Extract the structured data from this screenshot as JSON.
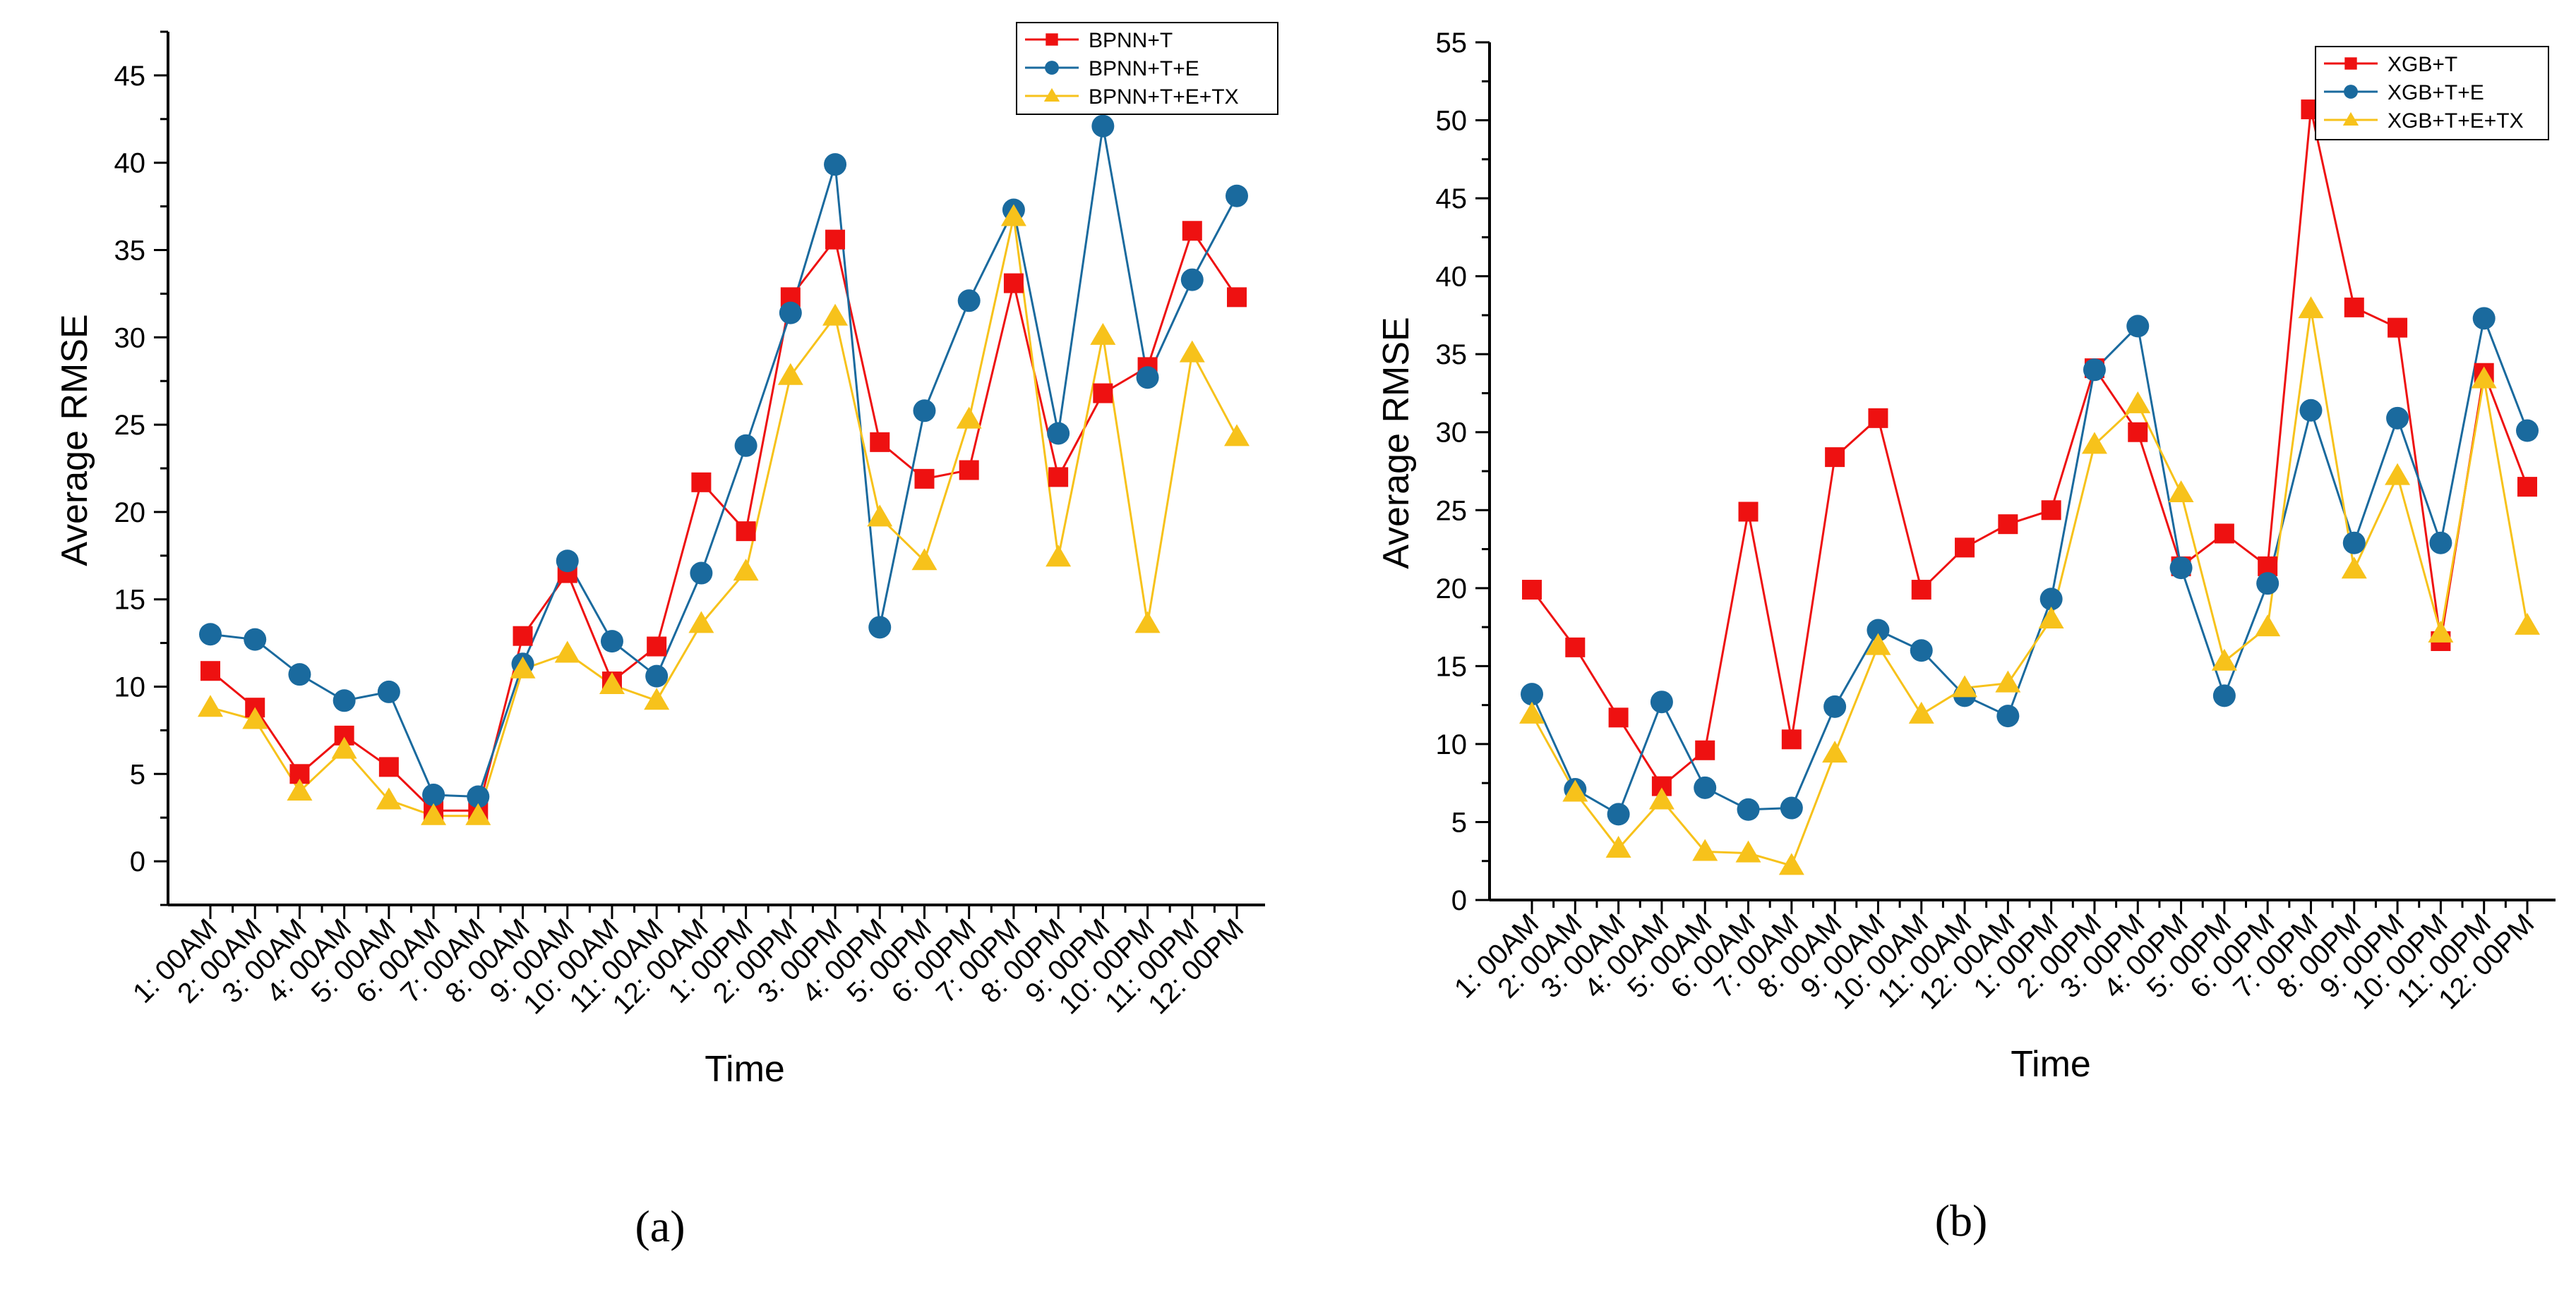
{
  "colors": {
    "red": "#ee1111",
    "blue": "#1a6a9e",
    "yellow": "#f7c21b"
  },
  "chart_data": [
    {
      "type": "line",
      "panel_label": "(a)",
      "xlabel": "Time",
      "ylabel": "Average RMSE",
      "ylim": [
        -2.5,
        47.5
      ],
      "yticks": [
        0,
        5,
        10,
        15,
        20,
        25,
        30,
        35,
        40,
        45
      ],
      "categories": [
        "1: 00AM",
        "2: 00AM",
        "3: 00AM",
        "4: 00AM",
        "5: 00AM",
        "6: 00AM",
        "7: 00AM",
        "8: 00AM",
        "9: 00AM",
        "10: 00AM",
        "11: 00AM",
        "12: 00AM",
        "1: 00PM",
        "2: 00PM",
        "3: 00PM",
        "4: 00PM",
        "5: 00PM",
        "6: 00PM",
        "7: 00PM",
        "8: 00PM",
        "9: 00PM",
        "10: 00PM",
        "11: 00PM",
        "12: 00PM"
      ],
      "series": [
        {
          "name": "BPNN+T",
          "color": "#ee1111",
          "marker": "square",
          "values": [
            10.9,
            8.8,
            5.0,
            7.2,
            5.4,
            2.9,
            2.9,
            12.9,
            16.5,
            10.3,
            12.3,
            21.7,
            18.9,
            32.3,
            35.6,
            24.0,
            21.9,
            22.4,
            33.1,
            22.0,
            26.8,
            28.3,
            36.1,
            32.3
          ]
        },
        {
          "name": "BPNN+T+E",
          "color": "#1a6a9e",
          "marker": "circle",
          "values": [
            13.0,
            12.7,
            10.7,
            9.2,
            9.7,
            3.8,
            3.7,
            11.3,
            17.2,
            12.6,
            10.6,
            16.5,
            23.8,
            31.4,
            39.9,
            13.4,
            25.8,
            32.1,
            37.3,
            24.5,
            42.1,
            27.7,
            33.3,
            38.1
          ]
        },
        {
          "name": "BPNN+T+E+TX",
          "color": "#f7c21b",
          "marker": "triangle",
          "values": [
            8.8,
            8.1,
            4.0,
            6.4,
            3.5,
            2.6,
            2.6,
            11.0,
            11.9,
            10.1,
            9.2,
            13.6,
            16.6,
            27.8,
            31.2,
            19.7,
            17.2,
            25.3,
            36.9,
            17.4,
            30.1,
            13.6,
            29.1,
            24.3
          ]
        }
      ]
    },
    {
      "type": "line",
      "panel_label": "(b)",
      "xlabel": "Time",
      "ylabel": "Average RMSE",
      "ylim": [
        0,
        55
      ],
      "yticks": [
        0,
        5,
        10,
        15,
        20,
        25,
        30,
        35,
        40,
        45,
        50,
        55
      ],
      "categories": [
        "1: 00AM",
        "2: 00AM",
        "3: 00AM",
        "4: 00AM",
        "5: 00AM",
        "6: 00AM",
        "7: 00AM",
        "8: 00AM",
        "9: 00AM",
        "10: 00AM",
        "11: 00AM",
        "12: 00AM",
        "1: 00PM",
        "2: 00PM",
        "3: 00PM",
        "4: 00PM",
        "5: 00PM",
        "6: 00PM",
        "7: 00PM",
        "8: 00PM",
        "9: 00PM",
        "10: 00PM",
        "11: 00PM",
        "12: 00PM"
      ],
      "series": [
        {
          "name": "XGB+T",
          "color": "#ee1111",
          "marker": "square",
          "values": [
            19.9,
            16.2,
            11.7,
            7.3,
            9.6,
            24.9,
            10.3,
            28.4,
            30.9,
            19.9,
            22.6,
            24.1,
            25.0,
            34.1,
            30.0,
            21.4,
            23.5,
            21.4,
            50.7,
            38.0,
            36.7,
            16.6,
            33.8,
            26.5
          ]
        },
        {
          "name": "XGB+T+E",
          "color": "#1a6a9e",
          "marker": "circle",
          "values": [
            13.2,
            7.1,
            5.5,
            12.7,
            7.2,
            5.8,
            5.9,
            12.4,
            17.3,
            16.0,
            13.1,
            11.8,
            19.3,
            34.0,
            36.8,
            21.3,
            13.1,
            20.3,
            31.4,
            22.9,
            30.9,
            22.9,
            37.3,
            30.1
          ]
        },
        {
          "name": "XGB+T+E+TX",
          "color": "#f7c21b",
          "marker": "triangle",
          "values": [
            11.9,
            6.9,
            3.3,
            6.4,
            3.1,
            3.0,
            2.2,
            9.4,
            16.3,
            11.9,
            13.6,
            13.9,
            18.0,
            29.2,
            31.8,
            26.1,
            15.3,
            17.5,
            37.9,
            21.2,
            27.2,
            17.1,
            33.4,
            17.6
          ]
        }
      ]
    }
  ]
}
